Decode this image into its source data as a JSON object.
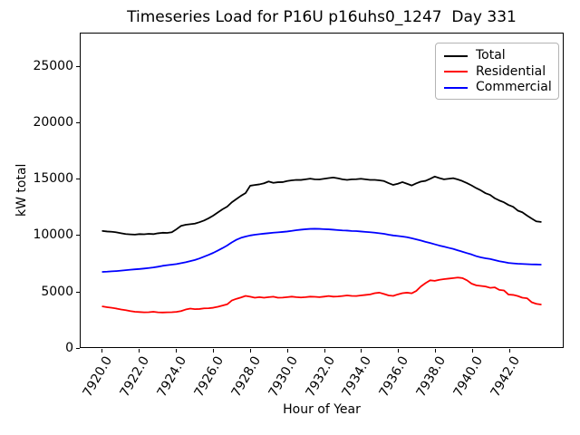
{
  "figure": {
    "title": "Timeseries Load for P16U p16uhs0_1247  Day 331",
    "xlabel": "Hour of Year",
    "ylabel": "kW total"
  },
  "legend": {
    "items": [
      {
        "label": "Total",
        "color": "#000000"
      },
      {
        "label": "Residential",
        "color": "#ff0000"
      },
      {
        "label": "Commercial",
        "color": "#0000ff"
      }
    ]
  },
  "chart_data": {
    "type": "line",
    "title": "Timeseries Load for P16U p16uhs0_1247  Day 331",
    "xlabel": "Hour of Year",
    "ylabel": "kW total",
    "grid": false,
    "legend_position": "upper right",
    "xlim": [
      7918.81,
      7944.94
    ],
    "ylim": [
      0,
      27940
    ],
    "xticks": [
      7920,
      7922,
      7924,
      7926,
      7928,
      7930,
      7932,
      7934,
      7936,
      7938,
      7940,
      7942
    ],
    "xtick_labels": [
      "7920.0",
      "7922.0",
      "7924.0",
      "7926.0",
      "7928.0",
      "7930.0",
      "7932.0",
      "7934.0",
      "7936.0",
      "7938.0",
      "7940.0",
      "7942.0"
    ],
    "yticks": [
      0,
      5000,
      10000,
      15000,
      20000,
      25000
    ],
    "ytick_labels": [
      "0",
      "5000",
      "10000",
      "15000",
      "20000",
      "25000"
    ],
    "x_start": 7920.0,
    "x_step": 0.25,
    "x": [
      7920.0,
      7920.25,
      7920.5,
      7920.75,
      7921.0,
      7921.25,
      7921.5,
      7921.75,
      7922.0,
      7922.25,
      7922.5,
      7922.75,
      7923.0,
      7923.25,
      7923.5,
      7923.75,
      7924.0,
      7924.25,
      7924.5,
      7924.75,
      7925.0,
      7925.25,
      7925.5,
      7925.75,
      7926.0,
      7926.25,
      7926.5,
      7926.75,
      7927.0,
      7927.25,
      7927.5,
      7927.75,
      7928.0,
      7928.25,
      7928.5,
      7928.75,
      7929.0,
      7929.25,
      7929.5,
      7929.75,
      7930.0,
      7930.25,
      7930.5,
      7930.75,
      7931.0,
      7931.25,
      7931.5,
      7931.75,
      7932.0,
      7932.25,
      7932.5,
      7932.75,
      7933.0,
      7933.25,
      7933.5,
      7933.75,
      7934.0,
      7934.25,
      7934.5,
      7934.75,
      7935.0,
      7935.25,
      7935.5,
      7935.75,
      7936.0,
      7936.25,
      7936.5,
      7936.75,
      7937.0,
      7937.25,
      7937.5,
      7937.75,
      7938.0,
      7938.25,
      7938.5,
      7938.75,
      7939.0,
      7939.25,
      7939.5,
      7939.75,
      7940.0,
      7940.25,
      7940.5,
      7940.75,
      7941.0,
      7941.25,
      7941.5,
      7941.75,
      7942.0,
      7942.25,
      7942.5,
      7942.75,
      7943.0,
      7943.25,
      7943.5,
      7943.75
    ],
    "series": [
      {
        "name": "Total",
        "color": "#000000",
        "values": [
          10350,
          10300,
          10280,
          10230,
          10150,
          10080,
          10040,
          10020,
          10070,
          10050,
          10090,
          10070,
          10140,
          10190,
          10170,
          10240,
          10500,
          10800,
          10900,
          10950,
          11000,
          11130,
          11280,
          11480,
          11720,
          12000,
          12280,
          12520,
          12900,
          13190,
          13480,
          13730,
          14380,
          14440,
          14500,
          14600,
          14760,
          14640,
          14690,
          14700,
          14800,
          14860,
          14900,
          14890,
          14950,
          15010,
          14950,
          14940,
          15000,
          15060,
          15110,
          15040,
          14950,
          14900,
          14950,
          14960,
          15000,
          14950,
          14900,
          14900,
          14860,
          14800,
          14610,
          14450,
          14560,
          14700,
          14560,
          14400,
          14590,
          14750,
          14810,
          15000,
          15200,
          15060,
          14950,
          15000,
          15050,
          14940,
          14800,
          14610,
          14400,
          14160,
          13960,
          13710,
          13560,
          13260,
          13060,
          12900,
          12660,
          12500,
          12160,
          12010,
          11720,
          11460,
          11210,
          11150
        ]
      },
      {
        "name": "Residential",
        "color": "#ff0000",
        "values": [
          3620,
          3560,
          3500,
          3440,
          3350,
          3290,
          3210,
          3150,
          3120,
          3100,
          3110,
          3150,
          3100,
          3080,
          3100,
          3110,
          3140,
          3210,
          3350,
          3430,
          3380,
          3400,
          3450,
          3460,
          3510,
          3600,
          3700,
          3810,
          4150,
          4300,
          4420,
          4560,
          4490,
          4400,
          4450,
          4400,
          4450,
          4490,
          4400,
          4410,
          4450,
          4500,
          4450,
          4420,
          4450,
          4500,
          4480,
          4450,
          4500,
          4550,
          4500,
          4510,
          4550,
          4600,
          4560,
          4550,
          4600,
          4650,
          4700,
          4800,
          4850,
          4740,
          4600,
          4560,
          4700,
          4800,
          4850,
          4790,
          5000,
          5400,
          5700,
          5950,
          5900,
          6000,
          6050,
          6100,
          6150,
          6200,
          6150,
          5950,
          5650,
          5500,
          5450,
          5400,
          5280,
          5320,
          5100,
          5050,
          4680,
          4650,
          4550,
          4400,
          4350,
          4000,
          3850,
          3800
        ]
      },
      {
        "name": "Commercial",
        "color": "#0000ff",
        "values": [
          6700,
          6720,
          6750,
          6780,
          6820,
          6860,
          6900,
          6930,
          6960,
          7000,
          7050,
          7100,
          7160,
          7240,
          7300,
          7350,
          7400,
          7480,
          7560,
          7660,
          7760,
          7900,
          8060,
          8220,
          8400,
          8610,
          8820,
          9060,
          9330,
          9560,
          9740,
          9850,
          9950,
          10010,
          10060,
          10110,
          10150,
          10200,
          10230,
          10260,
          10300,
          10360,
          10410,
          10460,
          10500,
          10530,
          10540,
          10530,
          10510,
          10490,
          10460,
          10430,
          10400,
          10380,
          10350,
          10330,
          10300,
          10270,
          10240,
          10200,
          10150,
          10090,
          10010,
          9950,
          9900,
          9850,
          9790,
          9700,
          9600,
          9500,
          9380,
          9270,
          9160,
          9050,
          8950,
          8850,
          8750,
          8620,
          8500,
          8370,
          8250,
          8100,
          8000,
          7920,
          7850,
          7750,
          7650,
          7580,
          7500,
          7460,
          7430,
          7410,
          7390,
          7370,
          7360,
          7350
        ]
      }
    ]
  }
}
